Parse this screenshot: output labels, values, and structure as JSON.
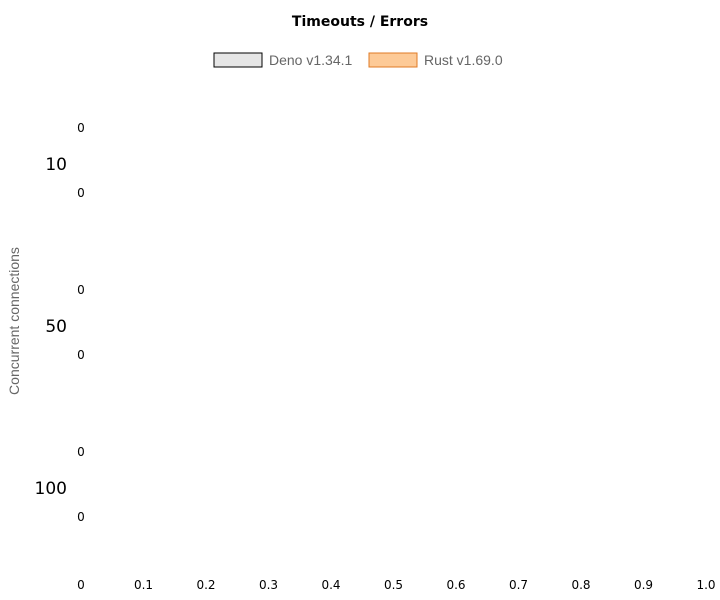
{
  "chart_data": {
    "type": "bar",
    "orientation": "horizontal",
    "title": "Timeouts / Errors",
    "xlabel": "",
    "ylabel": "Concurrent connections",
    "categories": [
      "10",
      "50",
      "100"
    ],
    "series": [
      {
        "name": "Deno v1.34.1",
        "values": [
          0,
          0,
          0
        ],
        "fill": "#e6e6e6",
        "stroke": "#000000"
      },
      {
        "name": "Rust v1.69.0",
        "values": [
          0,
          0,
          0
        ],
        "fill": "#fdca97",
        "stroke": "#e07b26"
      }
    ],
    "xlim": [
      0,
      1.0
    ],
    "xticks": [
      "0",
      "0.1",
      "0.2",
      "0.3",
      "0.4",
      "0.5",
      "0.6",
      "0.7",
      "0.8",
      "0.9",
      "1.0"
    ],
    "grid": false,
    "legend_position": "top-center"
  }
}
